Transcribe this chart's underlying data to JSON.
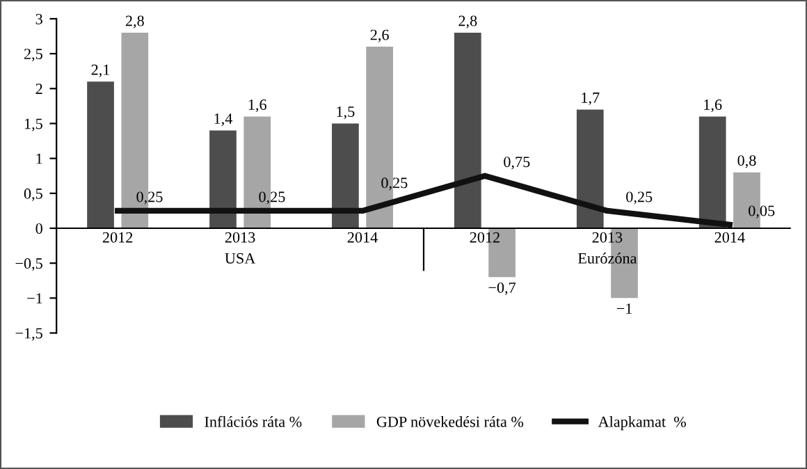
{
  "chart_data": {
    "type": "bar",
    "categories": [
      "2012",
      "2013",
      "2014",
      "2012",
      "2013",
      "2014"
    ],
    "series": [
      {
        "name": "Inflációs ráta %",
        "color": "#4d4d4d",
        "values": [
          2.1,
          1.4,
          1.5,
          2.8,
          1.7,
          1.6
        ],
        "value_labels": [
          "2,1",
          "1,4",
          "1,5",
          "2,8",
          "1,7",
          "1,6"
        ]
      },
      {
        "name": "GDP növekedési ráta %",
        "color": "#a6a6a6",
        "values": [
          2.8,
          1.6,
          2.6,
          -0.7,
          -1,
          0.8
        ],
        "value_labels": [
          "2,8",
          "1,6",
          "2,6",
          "−0,7",
          "−1",
          "0,8"
        ]
      },
      {
        "name": "Alapkamat  %",
        "type": "line",
        "color": "#111111",
        "values": [
          0.25,
          0.25,
          0.25,
          0.75,
          0.25,
          0.05
        ],
        "value_labels": [
          "0,25",
          "0,25",
          "0,25",
          "0,75",
          "0,25",
          "0,05"
        ]
      }
    ],
    "annotations": [
      "USA",
      "Eurózóna"
    ],
    "ylim": [
      -1.5,
      3
    ],
    "yticks": [
      {
        "value": -1.5,
        "label": "−1,5"
      },
      {
        "value": -1,
        "label": "−1"
      },
      {
        "value": -0.5,
        "label": "−0,5"
      },
      0,
      {
        "value": 0.5,
        "label": "0,5"
      },
      1,
      {
        "value": 1.5,
        "label": "1,5"
      },
      2,
      {
        "value": 2.5,
        "label": "2,5"
      },
      3
    ],
    "grid": false,
    "legend": "bottom"
  }
}
